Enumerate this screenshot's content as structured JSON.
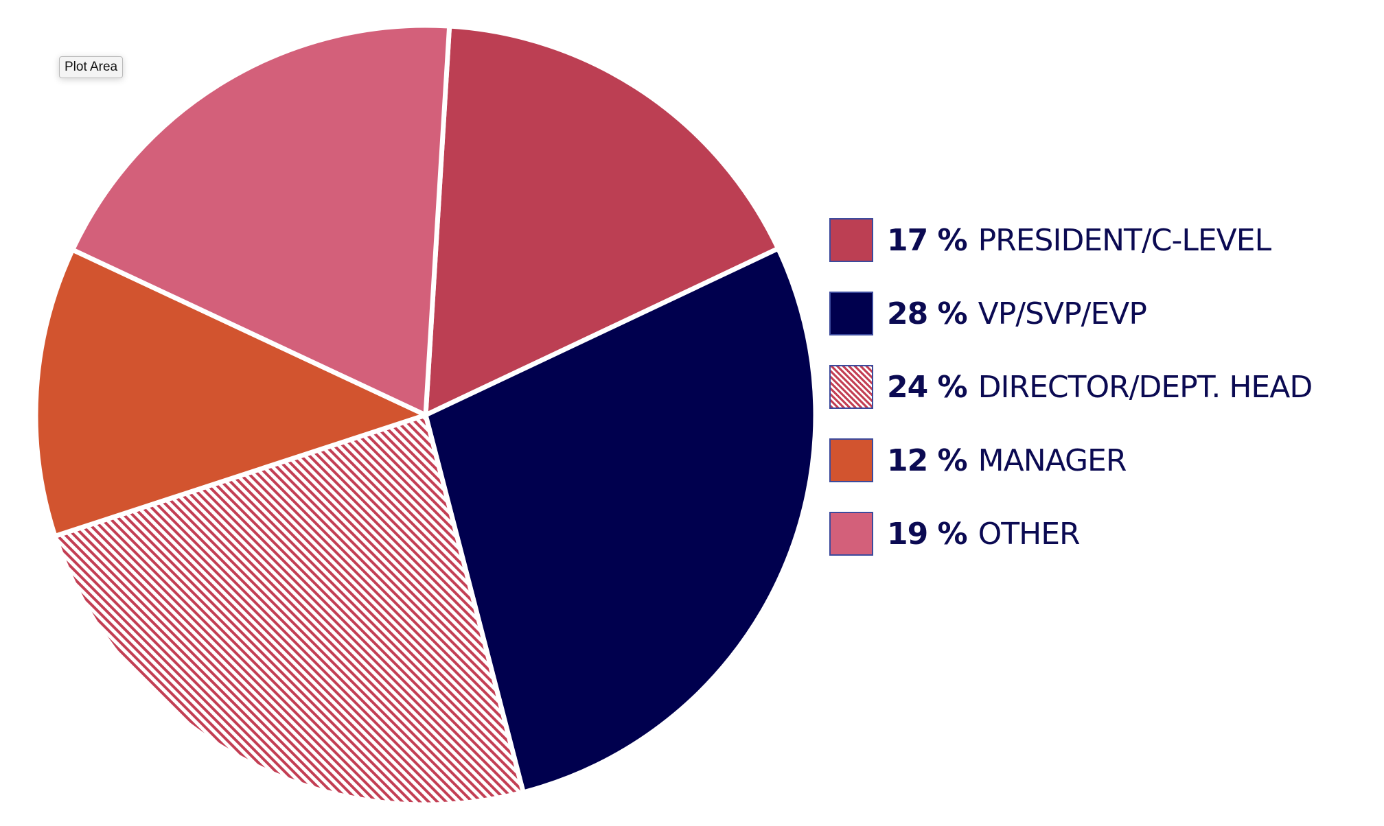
{
  "tooltip": {
    "label": "Plot Area"
  },
  "chart_data": {
    "type": "pie",
    "title": "",
    "legend_position": "right",
    "slices": [
      {
        "label": "PRESIDENT/C-LEVEL",
        "value": 17,
        "value_label": "17 %",
        "color": "#bc3f53",
        "pattern": "solid"
      },
      {
        "label": "VP/SVP/EVP",
        "value": 28,
        "value_label": "28 %",
        "color": "#00004e",
        "pattern": "solid"
      },
      {
        "label": "DIRECTOR/DEPT. HEAD",
        "value": 24,
        "value_label": "24 %",
        "color": "#c33f54",
        "pattern": "diagonal-stripes"
      },
      {
        "label": "MANAGER",
        "value": 12,
        "value_label": "12 %",
        "color": "#d2542f",
        "pattern": "solid"
      },
      {
        "label": "OTHER",
        "value": 19,
        "value_label": "19 %",
        "color": "#d3607a",
        "pattern": "solid"
      }
    ]
  }
}
